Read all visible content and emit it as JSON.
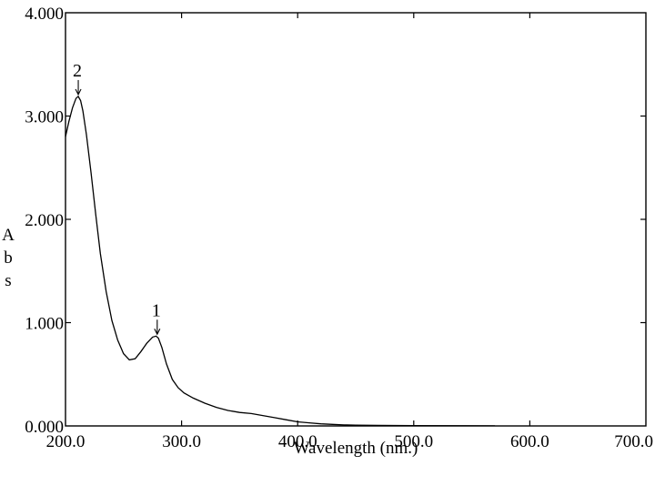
{
  "chart_data": {
    "type": "line",
    "title": "",
    "xlabel": "Wavelength (nm.)",
    "ylabel": "Abs",
    "xlim": [
      200.0,
      700.0
    ],
    "ylim": [
      0.0,
      4.0
    ],
    "x_ticks": [
      "200.0",
      "300.0",
      "400.0",
      "500.0",
      "600.0",
      "700.0"
    ],
    "y_ticks": [
      "0.000",
      "1.000",
      "2.000",
      "3.000",
      "4.000"
    ],
    "grid": false,
    "legend": "none",
    "colors": {
      "line": "#000000",
      "axes": "#000000",
      "background": "#ffffff"
    },
    "series": [
      {
        "x": [
          200,
          203,
          206,
          209,
          211,
          213,
          215,
          218,
          222,
          226,
          230,
          235,
          240,
          245,
          250,
          255,
          260,
          265,
          270,
          275,
          278,
          280,
          283,
          287,
          292,
          297,
          302,
          310,
          320,
          330,
          340,
          350,
          360,
          370,
          380,
          390,
          400,
          410,
          420,
          430,
          440,
          450,
          470,
          500,
          540,
          570
        ],
        "y": [
          2.8,
          2.95,
          3.08,
          3.17,
          3.19,
          3.15,
          3.05,
          2.82,
          2.45,
          2.05,
          1.67,
          1.3,
          1.02,
          0.83,
          0.7,
          0.64,
          0.65,
          0.72,
          0.8,
          0.86,
          0.87,
          0.85,
          0.76,
          0.6,
          0.45,
          0.37,
          0.32,
          0.27,
          0.22,
          0.18,
          0.15,
          0.13,
          0.12,
          0.1,
          0.08,
          0.06,
          0.04,
          0.03,
          0.02,
          0.015,
          0.01,
          0.008,
          0.005,
          0.003,
          0.002,
          0.001
        ]
      }
    ],
    "annotations": [
      {
        "label": "1",
        "x": 279,
        "y": 0.87
      },
      {
        "label": "2",
        "x": 211,
        "y": 3.19
      }
    ]
  }
}
